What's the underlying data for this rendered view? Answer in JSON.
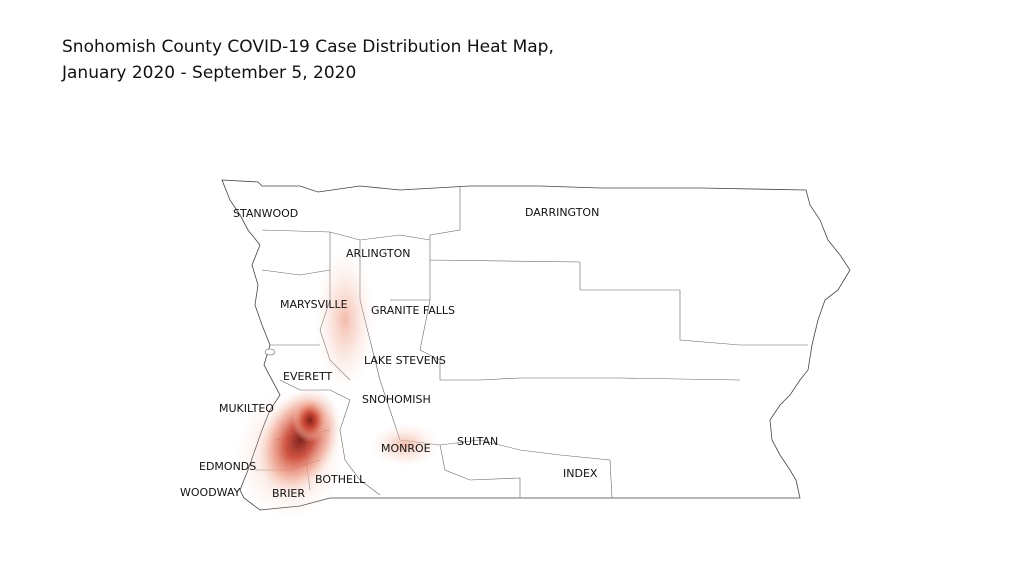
{
  "header": {
    "title_lines": [
      "Snohomish County COVID-19 Case Distribution Heat Map,",
      "January 2020 - September 5, 2020"
    ]
  },
  "map": {
    "places": [
      {
        "label": "STANWOOD"
      },
      {
        "label": "DARRINGTON"
      },
      {
        "label": "ARLINGTON"
      },
      {
        "label": "MARYSVILLE"
      },
      {
        "label": "GRANITE FALLS"
      },
      {
        "label": "LAKE STEVENS"
      },
      {
        "label": "EVERETT"
      },
      {
        "label": "MUKILTEO"
      },
      {
        "label": "SNOHOMISH"
      },
      {
        "label": "MONROE"
      },
      {
        "label": "SULTAN"
      },
      {
        "label": "EDMONDS"
      },
      {
        "label": "INDEX"
      },
      {
        "label": "BOTHELL"
      },
      {
        "label": "WOODWAY"
      },
      {
        "label": "BRIER"
      }
    ]
  }
}
